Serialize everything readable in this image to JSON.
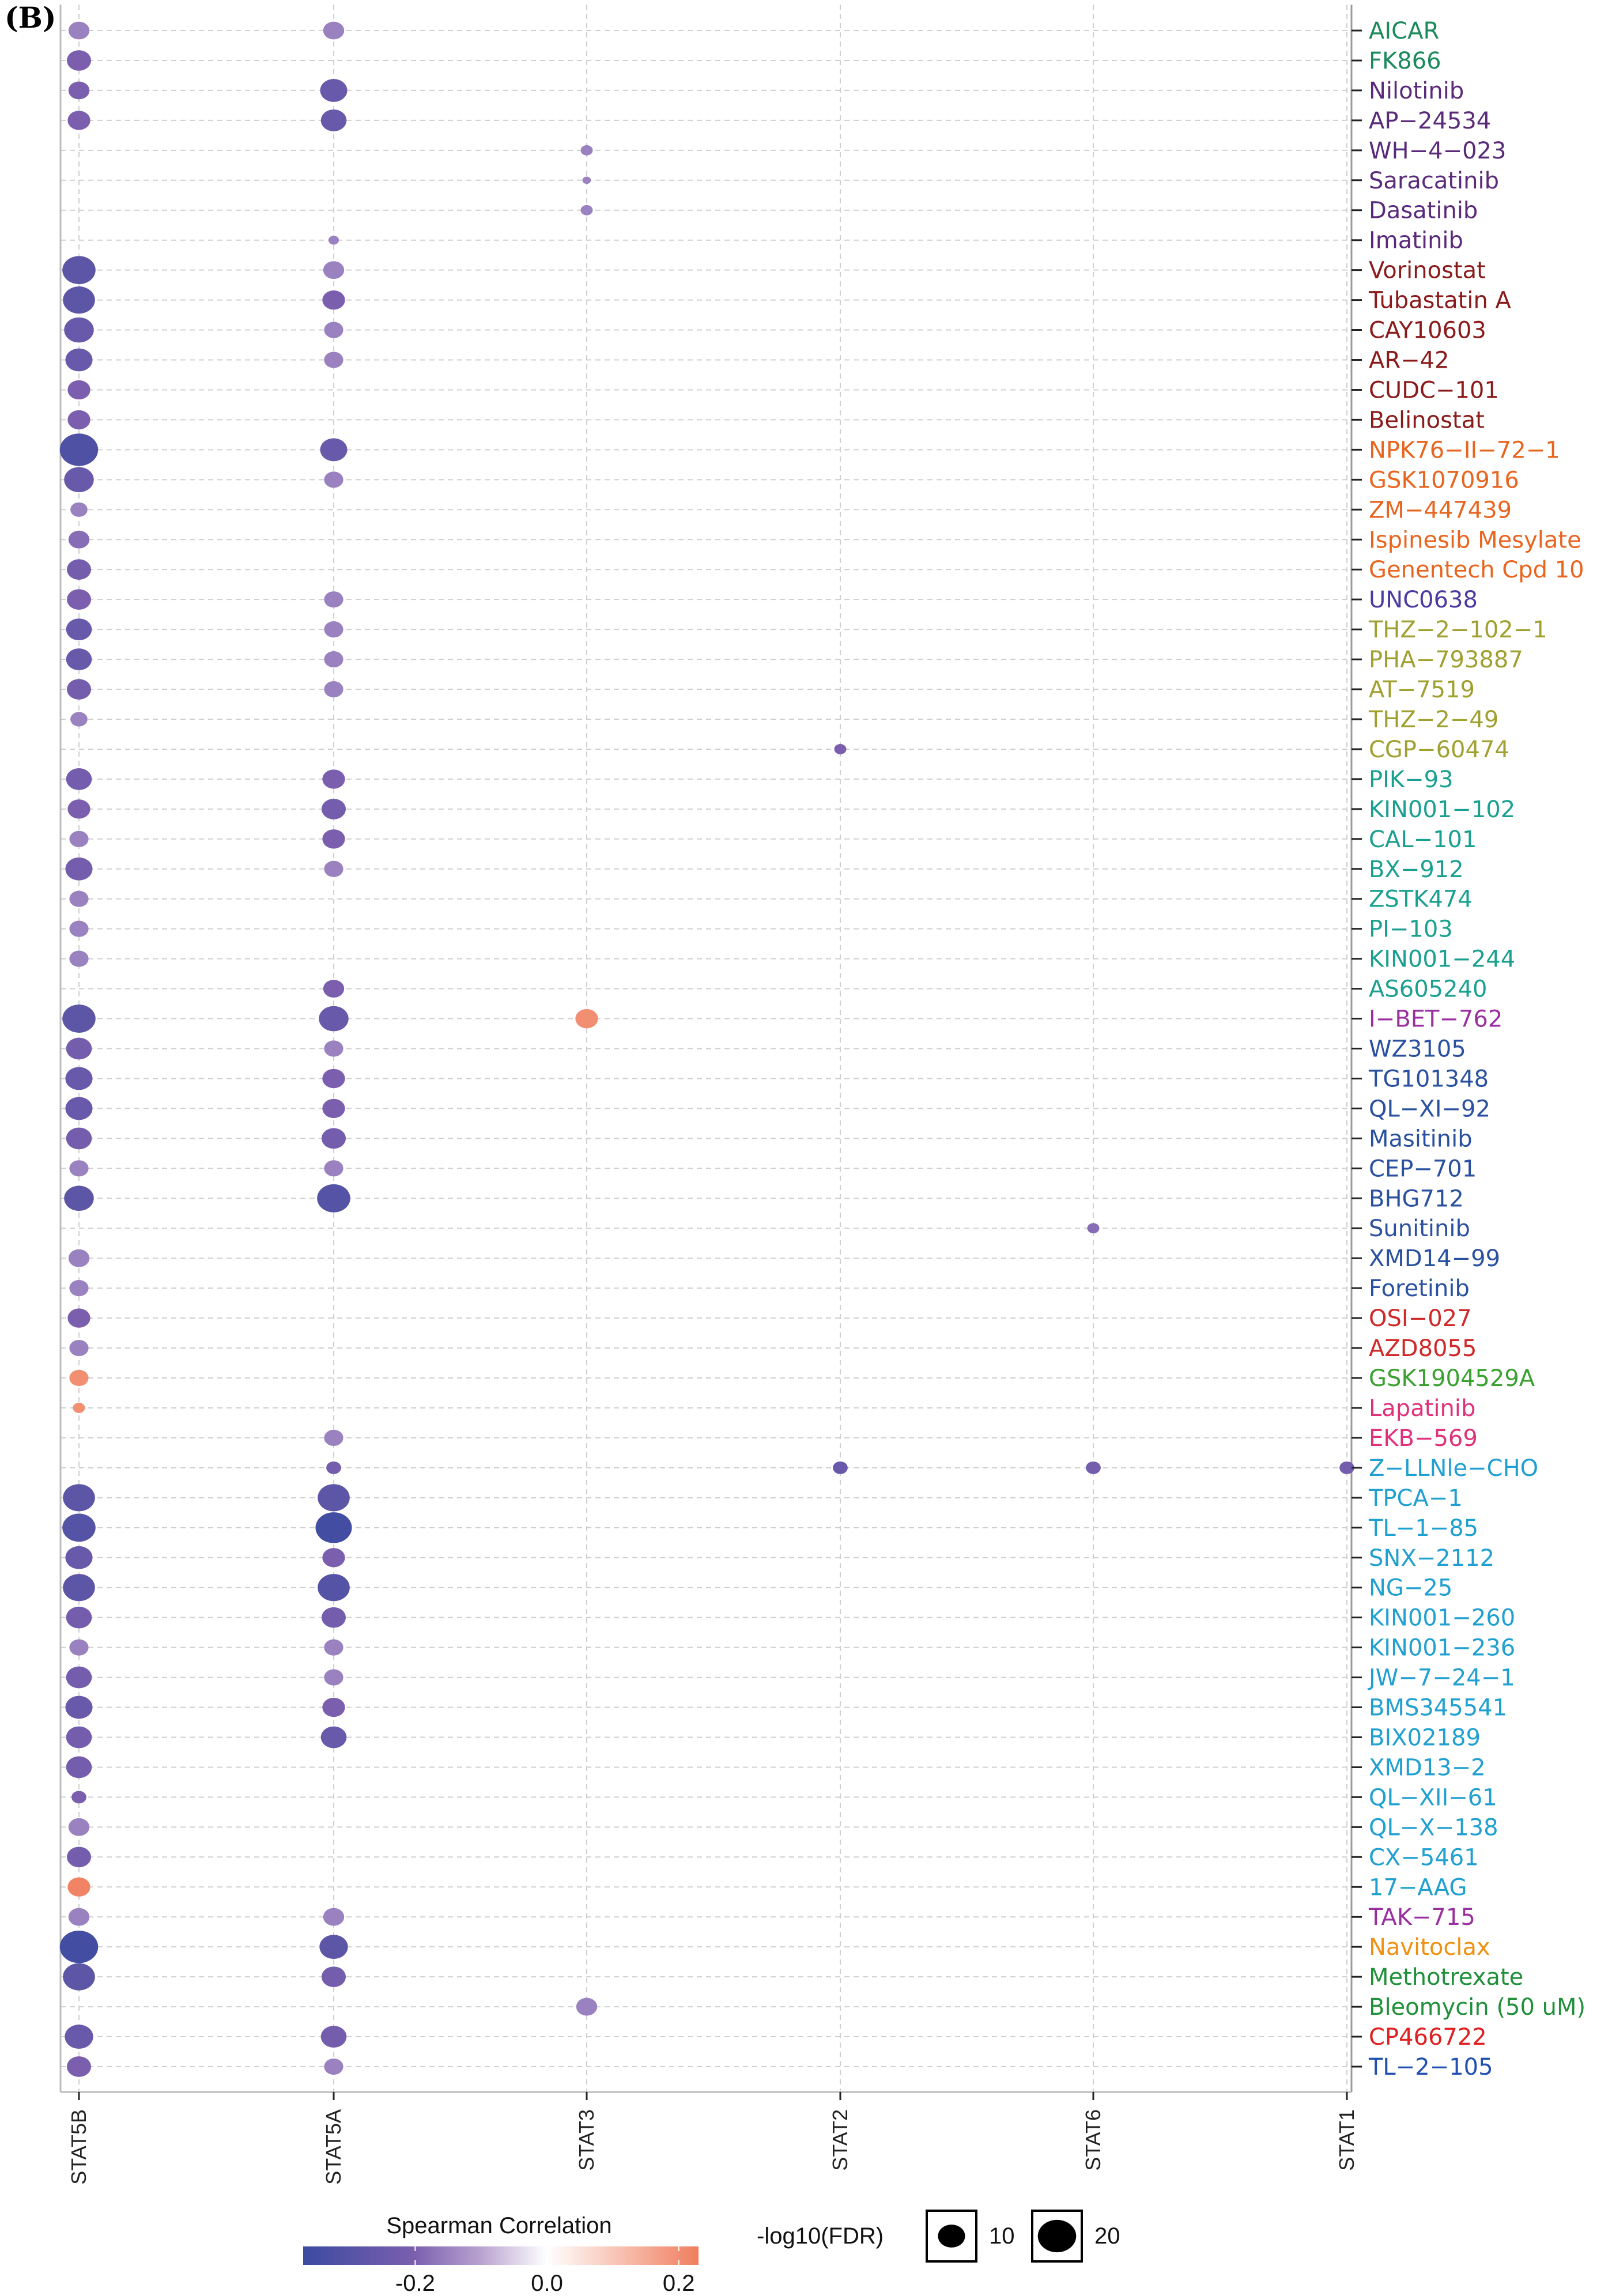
{
  "panel_label": "(B)",
  "chart_data": {
    "type": "scatter",
    "subtype": "bubble",
    "columns": [
      "STAT5B",
      "STAT5A",
      "STAT3",
      "STAT2",
      "STAT6",
      "STAT1"
    ],
    "color_legend": {
      "title": "Spearman Correlation",
      "ticks": [
        "-0.2",
        "0.0",
        "0.2"
      ],
      "tick_values": [
        -0.2,
        0.0,
        0.2
      ],
      "range": [
        -0.37,
        0.23
      ],
      "low_color": "#3b4ba0",
      "mid_color": "#ffffff",
      "high_color": "#f07e5e"
    },
    "size_legend": {
      "title": "-log10(FDR)",
      "keys": [
        {
          "label": "10",
          "value": 10
        },
        {
          "label": "20",
          "value": 20
        }
      ]
    },
    "value_format": "each value is [spearman_correlation, -log10(FDR)] or null",
    "rows": [
      {
        "name": "AICAR",
        "color": "#1a8a5a",
        "values": [
          [
            -0.15,
            6
          ],
          [
            -0.15,
            6
          ],
          null,
          null,
          null,
          null
        ]
      },
      {
        "name": "FK866",
        "color": "#1a8a5a",
        "values": [
          [
            -0.2,
            8
          ],
          null,
          null,
          null,
          null,
          null
        ]
      },
      {
        "name": "Nilotinib",
        "color": "#5a2a7a",
        "values": [
          [
            -0.2,
            6
          ],
          [
            -0.25,
            10
          ],
          null,
          null,
          null,
          null
        ]
      },
      {
        "name": "AP−24534",
        "color": "#5a2a7a",
        "values": [
          [
            -0.2,
            7
          ],
          [
            -0.25,
            9
          ],
          null,
          null,
          null,
          null
        ]
      },
      {
        "name": "WH−4−023",
        "color": "#5a2a7a",
        "values": [
          null,
          null,
          [
            -0.15,
            2
          ],
          null,
          null,
          null
        ]
      },
      {
        "name": "Saracatinib",
        "color": "#5a2a7a",
        "values": [
          null,
          null,
          [
            -0.15,
            1
          ],
          null,
          null,
          null
        ]
      },
      {
        "name": "Dasatinib",
        "color": "#5a2a7a",
        "values": [
          null,
          null,
          [
            -0.15,
            2
          ],
          null,
          null,
          null
        ]
      },
      {
        "name": "Imatinib",
        "color": "#5a2a7a",
        "values": [
          null,
          [
            -0.15,
            1.5
          ],
          null,
          null,
          null,
          null
        ]
      },
      {
        "name": "Vorinostat",
        "color": "#8b1a1a",
        "values": [
          [
            -0.28,
            15
          ],
          [
            -0.15,
            6
          ],
          null,
          null,
          null,
          null
        ]
      },
      {
        "name": "Tubastatin A",
        "color": "#8b1a1a",
        "values": [
          [
            -0.28,
            14
          ],
          [
            -0.2,
            7
          ],
          null,
          null,
          null,
          null
        ]
      },
      {
        "name": "CAY10603",
        "color": "#8b1a1a",
        "values": [
          [
            -0.25,
            12
          ],
          [
            -0.15,
            5
          ],
          null,
          null,
          null,
          null
        ]
      },
      {
        "name": "AR−42",
        "color": "#8b1a1a",
        "values": [
          [
            -0.25,
            10
          ],
          [
            -0.15,
            5
          ],
          null,
          null,
          null,
          null
        ]
      },
      {
        "name": "CUDC−101",
        "color": "#8b1a1a",
        "values": [
          [
            -0.2,
            7
          ],
          null,
          null,
          null,
          null,
          null
        ]
      },
      {
        "name": "Belinostat",
        "color": "#8b1a1a",
        "values": [
          [
            -0.2,
            7
          ],
          null,
          null,
          null,
          null,
          null
        ]
      },
      {
        "name": "NPK76−II−72−1",
        "color": "#e8651f",
        "values": [
          [
            -0.32,
            20
          ],
          [
            -0.25,
            10
          ],
          null,
          null,
          null,
          null
        ]
      },
      {
        "name": "GSK1070916",
        "color": "#e8651f",
        "values": [
          [
            -0.25,
            12
          ],
          [
            -0.15,
            5
          ],
          null,
          null,
          null,
          null
        ]
      },
      {
        "name": "ZM−447439",
        "color": "#e8651f",
        "values": [
          [
            -0.15,
            4
          ],
          null,
          null,
          null,
          null,
          null
        ]
      },
      {
        "name": "Ispinesib Mesylate",
        "color": "#e8651f",
        "values": [
          [
            -0.18,
            6
          ],
          null,
          null,
          null,
          null,
          null
        ]
      },
      {
        "name": "Genentech Cpd 10",
        "color": "#e8651f",
        "values": [
          [
            -0.22,
            8
          ],
          null,
          null,
          null,
          null,
          null
        ]
      },
      {
        "name": "UNC0638",
        "color": "#4b3aa0",
        "values": [
          [
            -0.2,
            8
          ],
          [
            -0.15,
            5
          ],
          null,
          null,
          null,
          null
        ]
      },
      {
        "name": "THZ−2−102−1",
        "color": "#a0a030",
        "values": [
          [
            -0.25,
            9
          ],
          [
            -0.15,
            5
          ],
          null,
          null,
          null,
          null
        ]
      },
      {
        "name": "PHA−793887",
        "color": "#a0a030",
        "values": [
          [
            -0.25,
            9
          ],
          [
            -0.15,
            5
          ],
          null,
          null,
          null,
          null
        ]
      },
      {
        "name": "AT−7519",
        "color": "#a0a030",
        "values": [
          [
            -0.22,
            8
          ],
          [
            -0.15,
            5
          ],
          null,
          null,
          null,
          null
        ]
      },
      {
        "name": "THZ−2−49",
        "color": "#a0a030",
        "values": [
          [
            -0.15,
            4
          ],
          null,
          null,
          null,
          null,
          null
        ]
      },
      {
        "name": "CGP−60474",
        "color": "#a0a030",
        "values": [
          null,
          null,
          null,
          [
            -0.2,
            2
          ],
          null,
          null
        ]
      },
      {
        "name": "PIK−93",
        "color": "#1aa090",
        "values": [
          [
            -0.22,
            9
          ],
          [
            -0.2,
            7
          ],
          null,
          null,
          null,
          null
        ]
      },
      {
        "name": "KIN001−102",
        "color": "#1aa090",
        "values": [
          [
            -0.2,
            7
          ],
          [
            -0.22,
            8
          ],
          null,
          null,
          null,
          null
        ]
      },
      {
        "name": "CAL−101",
        "color": "#1aa090",
        "values": [
          [
            -0.15,
            5
          ],
          [
            -0.2,
            7
          ],
          null,
          null,
          null,
          null
        ]
      },
      {
        "name": "BX−912",
        "color": "#1aa090",
        "values": [
          [
            -0.22,
            10
          ],
          [
            -0.15,
            5
          ],
          null,
          null,
          null,
          null
        ]
      },
      {
        "name": "ZSTK474",
        "color": "#1aa090",
        "values": [
          [
            -0.15,
            5
          ],
          null,
          null,
          null,
          null,
          null
        ]
      },
      {
        "name": "PI−103",
        "color": "#1aa090",
        "values": [
          [
            -0.15,
            5
          ],
          null,
          null,
          null,
          null,
          null
        ]
      },
      {
        "name": "KIN001−244",
        "color": "#1aa090",
        "values": [
          [
            -0.15,
            5
          ],
          null,
          null,
          null,
          null,
          null
        ]
      },
      {
        "name": "AS605240",
        "color": "#1aa090",
        "values": [
          null,
          [
            -0.2,
            6
          ],
          null,
          null,
          null,
          null
        ]
      },
      {
        "name": "I−BET−762",
        "color": "#9a30a0",
        "values": [
          [
            -0.28,
            15
          ],
          [
            -0.25,
            12
          ],
          [
            0.2,
            7
          ],
          null,
          null,
          null
        ]
      },
      {
        "name": "WZ3105",
        "color": "#2a50a0",
        "values": [
          [
            -0.22,
            9
          ],
          [
            -0.15,
            5
          ],
          null,
          null,
          null,
          null
        ]
      },
      {
        "name": "TG101348",
        "color": "#2a50a0",
        "values": [
          [
            -0.25,
            10
          ],
          [
            -0.2,
            7
          ],
          null,
          null,
          null,
          null
        ]
      },
      {
        "name": "QL−XI−92",
        "color": "#2a50a0",
        "values": [
          [
            -0.25,
            10
          ],
          [
            -0.2,
            7
          ],
          null,
          null,
          null,
          null
        ]
      },
      {
        "name": "Masitinib",
        "color": "#2a50a0",
        "values": [
          [
            -0.22,
            9
          ],
          [
            -0.22,
            8
          ],
          null,
          null,
          null,
          null
        ]
      },
      {
        "name": "CEP−701",
        "color": "#2a50a0",
        "values": [
          [
            -0.15,
            5
          ],
          [
            -0.15,
            5
          ],
          null,
          null,
          null,
          null
        ]
      },
      {
        "name": "BHG712",
        "color": "#2a50a0",
        "values": [
          [
            -0.28,
            12
          ],
          [
            -0.3,
            15
          ],
          null,
          null,
          null,
          null
        ]
      },
      {
        "name": "Sunitinib",
        "color": "#2a50a0",
        "values": [
          null,
          null,
          null,
          null,
          [
            -0.18,
            2
          ],
          null
        ]
      },
      {
        "name": "XMD14−99",
        "color": "#2a50a0",
        "values": [
          [
            -0.15,
            6
          ],
          null,
          null,
          null,
          null,
          null
        ]
      },
      {
        "name": "Foretinib",
        "color": "#2a50a0",
        "values": [
          [
            -0.15,
            5
          ],
          null,
          null,
          null,
          null,
          null
        ]
      },
      {
        "name": "OSI−027",
        "color": "#d02828",
        "values": [
          [
            -0.2,
            7
          ],
          null,
          null,
          null,
          null,
          null
        ]
      },
      {
        "name": "AZD8055",
        "color": "#d02828",
        "values": [
          [
            -0.15,
            5
          ],
          null,
          null,
          null,
          null,
          null
        ]
      },
      {
        "name": "GSK1904529A",
        "color": "#3aa030",
        "values": [
          [
            0.2,
            5
          ],
          null,
          null,
          null,
          null,
          null
        ]
      },
      {
        "name": "Lapatinib",
        "color": "#e0307a",
        "values": [
          [
            0.2,
            2
          ],
          null,
          null,
          null,
          null,
          null
        ]
      },
      {
        "name": "EKB−569",
        "color": "#e0307a",
        "values": [
          null,
          [
            -0.15,
            5
          ],
          null,
          null,
          null,
          null
        ]
      },
      {
        "name": "Z−LLNle−CHO",
        "color": "#20a0d0",
        "values": [
          null,
          [
            -0.22,
            3
          ],
          null,
          [
            -0.25,
            3
          ],
          [
            -0.22,
            3
          ],
          [
            -0.22,
            3
          ]
        ]
      },
      {
        "name": "TPCA−1",
        "color": "#20a0d0",
        "values": [
          [
            -0.28,
            14
          ],
          [
            -0.28,
            14
          ],
          null,
          null,
          null,
          null
        ]
      },
      {
        "name": "TL−1−85",
        "color": "#20a0d0",
        "values": [
          [
            -0.3,
            15
          ],
          [
            -0.35,
            18
          ],
          null,
          null,
          null,
          null
        ]
      },
      {
        "name": "SNX−2112",
        "color": "#20a0d0",
        "values": [
          [
            -0.25,
            10
          ],
          [
            -0.2,
            7
          ],
          null,
          null,
          null,
          null
        ]
      },
      {
        "name": "NG−25",
        "color": "#20a0d0",
        "values": [
          [
            -0.28,
            14
          ],
          [
            -0.3,
            14
          ],
          null,
          null,
          null,
          null
        ]
      },
      {
        "name": "KIN001−260",
        "color": "#20a0d0",
        "values": [
          [
            -0.22,
            9
          ],
          [
            -0.22,
            8
          ],
          null,
          null,
          null,
          null
        ]
      },
      {
        "name": "KIN001−236",
        "color": "#20a0d0",
        "values": [
          [
            -0.15,
            5
          ],
          [
            -0.15,
            5
          ],
          null,
          null,
          null,
          null
        ]
      },
      {
        "name": "JW−7−24−1",
        "color": "#20a0d0",
        "values": [
          [
            -0.22,
            9
          ],
          [
            -0.15,
            5
          ],
          null,
          null,
          null,
          null
        ]
      },
      {
        "name": "BMS345541",
        "color": "#20a0d0",
        "values": [
          [
            -0.25,
            10
          ],
          [
            -0.2,
            7
          ],
          null,
          null,
          null,
          null
        ]
      },
      {
        "name": "BIX02189",
        "color": "#20a0d0",
        "values": [
          [
            -0.22,
            9
          ],
          [
            -0.25,
            9
          ],
          null,
          null,
          null,
          null
        ]
      },
      {
        "name": "XMD13−2",
        "color": "#20a0d0",
        "values": [
          [
            -0.22,
            9
          ],
          null,
          null,
          null,
          null,
          null
        ]
      },
      {
        "name": "QL−XII−61",
        "color": "#20a0d0",
        "values": [
          [
            -0.2,
            3
          ],
          null,
          null,
          null,
          null,
          null
        ]
      },
      {
        "name": "QL−X−138",
        "color": "#20a0d0",
        "values": [
          [
            -0.15,
            6
          ],
          null,
          null,
          null,
          null,
          null
        ]
      },
      {
        "name": "CX−5461",
        "color": "#20a0d0",
        "values": [
          [
            -0.22,
            8
          ],
          null,
          null,
          null,
          null,
          null
        ]
      },
      {
        "name": "17−AAG",
        "color": "#20a0d0",
        "values": [
          [
            0.22,
            7
          ],
          null,
          null,
          null,
          null,
          null
        ]
      },
      {
        "name": "TAK−715",
        "color": "#9a30a0",
        "values": [
          [
            -0.15,
            6
          ],
          [
            -0.15,
            6
          ],
          null,
          null,
          null,
          null
        ]
      },
      {
        "name": "Navitoclax",
        "color": "#f09010",
        "values": [
          [
            -0.35,
            20
          ],
          [
            -0.28,
            11
          ],
          null,
          null,
          null,
          null
        ]
      },
      {
        "name": "Methotrexate",
        "color": "#20903a",
        "values": [
          [
            -0.28,
            14
          ],
          [
            -0.22,
            8
          ],
          null,
          null,
          null,
          null
        ]
      },
      {
        "name": "Bleomycin (50 uM)",
        "color": "#20903a",
        "values": [
          null,
          null,
          [
            -0.15,
            6
          ],
          null,
          null,
          null
        ]
      },
      {
        "name": "CP466722",
        "color": "#e02020",
        "values": [
          [
            -0.25,
            11
          ],
          [
            -0.22,
            9
          ],
          null,
          null,
          null,
          null
        ]
      },
      {
        "name": "TL−2−105",
        "color": "#2050b0",
        "values": [
          [
            -0.2,
            8
          ],
          [
            -0.15,
            5
          ],
          null,
          null,
          null,
          null
        ]
      }
    ]
  }
}
